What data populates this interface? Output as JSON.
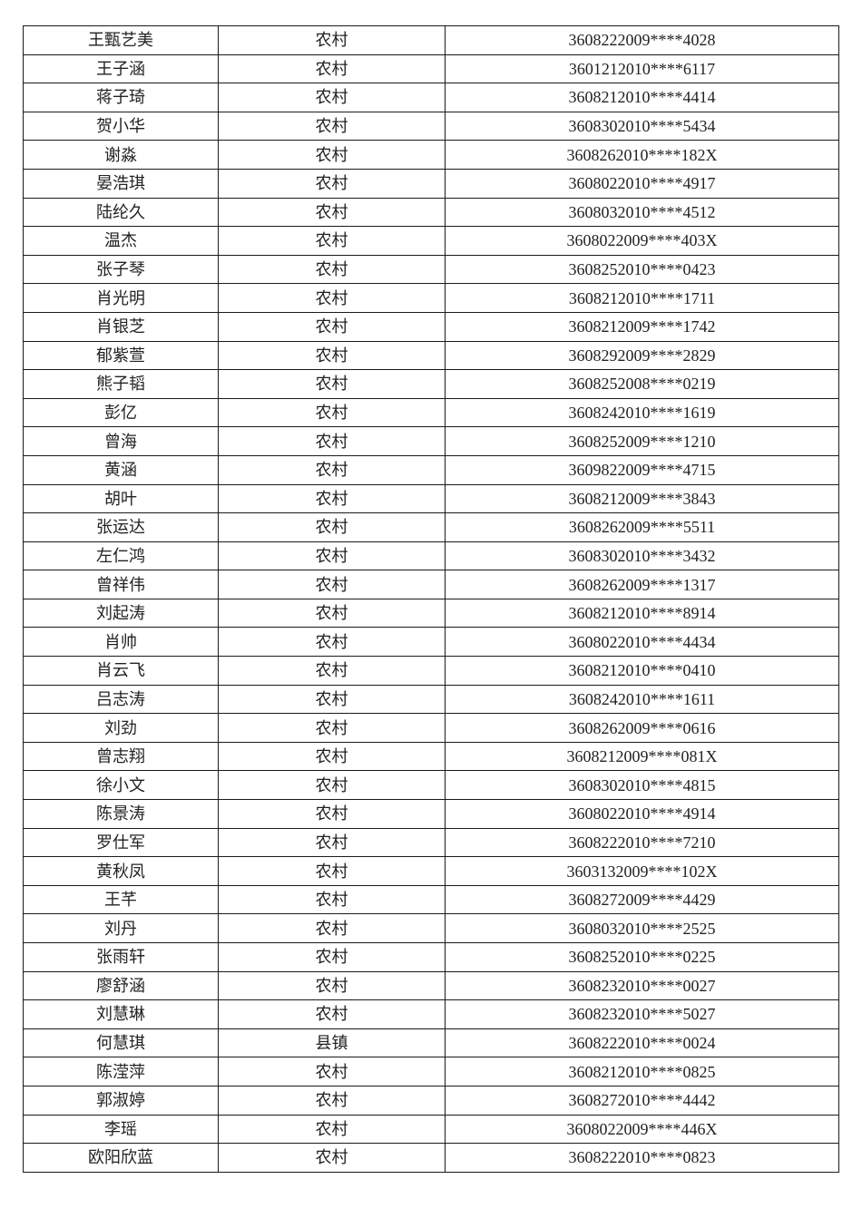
{
  "rows": [
    {
      "name": "王甄艺美",
      "area": "农村",
      "id": "3608222009****4028"
    },
    {
      "name": "王子涵",
      "area": "农村",
      "id": "3601212010****6117"
    },
    {
      "name": "蒋子琦",
      "area": "农村",
      "id": "3608212010****4414"
    },
    {
      "name": "贺小华",
      "area": "农村",
      "id": "3608302010****5434"
    },
    {
      "name": "谢淼",
      "area": "农村",
      "id": "3608262010****182X"
    },
    {
      "name": "晏浩琪",
      "area": "农村",
      "id": "3608022010****4917"
    },
    {
      "name": "陆纶久",
      "area": "农村",
      "id": "3608032010****4512"
    },
    {
      "name": "温杰",
      "area": "农村",
      "id": "3608022009****403X"
    },
    {
      "name": "张子琴",
      "area": "农村",
      "id": "3608252010****0423"
    },
    {
      "name": "肖光明",
      "area": "农村",
      "id": "3608212010****1711"
    },
    {
      "name": "肖银芝",
      "area": "农村",
      "id": "3608212009****1742"
    },
    {
      "name": "郁紫萱",
      "area": "农村",
      "id": "3608292009****2829"
    },
    {
      "name": "熊子韬",
      "area": "农村",
      "id": "3608252008****0219"
    },
    {
      "name": "彭亿",
      "area": "农村",
      "id": "3608242010****1619"
    },
    {
      "name": "曾海",
      "area": "农村",
      "id": "3608252009****1210"
    },
    {
      "name": "黄涵",
      "area": "农村",
      "id": "3609822009****4715"
    },
    {
      "name": "胡叶",
      "area": "农村",
      "id": "3608212009****3843"
    },
    {
      "name": "张运达",
      "area": "农村",
      "id": "3608262009****5511"
    },
    {
      "name": "左仁鸿",
      "area": "农村",
      "id": "3608302010****3432"
    },
    {
      "name": "曾祥伟",
      "area": "农村",
      "id": "3608262009****1317"
    },
    {
      "name": "刘起涛",
      "area": "农村",
      "id": "3608212010****8914"
    },
    {
      "name": "肖帅",
      "area": "农村",
      "id": "3608022010****4434"
    },
    {
      "name": "肖云飞",
      "area": "农村",
      "id": "3608212010****0410"
    },
    {
      "name": "吕志涛",
      "area": "农村",
      "id": "3608242010****1611"
    },
    {
      "name": "刘劲",
      "area": "农村",
      "id": "3608262009****0616"
    },
    {
      "name": "曾志翔",
      "area": "农村",
      "id": "3608212009****081X"
    },
    {
      "name": "徐小文",
      "area": "农村",
      "id": "3608302010****4815"
    },
    {
      "name": "陈景涛",
      "area": "农村",
      "id": "3608022010****4914"
    },
    {
      "name": "罗仕军",
      "area": "农村",
      "id": "3608222010****7210"
    },
    {
      "name": "黄秋凤",
      "area": "农村",
      "id": "3603132009****102X"
    },
    {
      "name": "王芊",
      "area": "农村",
      "id": "3608272009****4429"
    },
    {
      "name": "刘丹",
      "area": "农村",
      "id": "3608032010****2525"
    },
    {
      "name": "张雨轩",
      "area": "农村",
      "id": "3608252010****0225"
    },
    {
      "name": "廖舒涵",
      "area": "农村",
      "id": "3608232010****0027"
    },
    {
      "name": "刘慧琳",
      "area": "农村",
      "id": "3608232010****5027"
    },
    {
      "name": "何慧琪",
      "area": "县镇",
      "id": "3608222010****0024"
    },
    {
      "name": "陈滢萍",
      "area": "农村",
      "id": "3608212010****0825"
    },
    {
      "name": "郭淑婷",
      "area": "农村",
      "id": "3608272010****4442"
    },
    {
      "name": "李瑶",
      "area": "农村",
      "id": "3608022009****446X"
    },
    {
      "name": "欧阳欣蓝",
      "area": "农村",
      "id": "3608222010****0823"
    }
  ]
}
